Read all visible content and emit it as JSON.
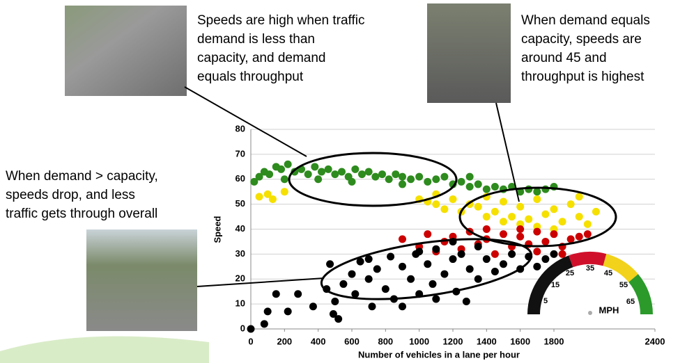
{
  "chart_data": {
    "type": "scatter",
    "xlabel": "Number of vehicles in a lane per hour",
    "ylabel": "Speed",
    "xlim": [
      0,
      2400
    ],
    "xticks": [
      0,
      200,
      400,
      600,
      800,
      1000,
      1200,
      1400,
      1600,
      1800,
      2400
    ],
    "ylim": [
      0,
      80
    ],
    "yticks": [
      0,
      10,
      20,
      30,
      40,
      50,
      60,
      70,
      80
    ],
    "grid": true,
    "series": [
      {
        "color": "#2e8b1e",
        "x": [
          20,
          50,
          80,
          110,
          150,
          180,
          220,
          260,
          300,
          340,
          380,
          420,
          460,
          500,
          540,
          580,
          620,
          660,
          700,
          740,
          780,
          820,
          860,
          900,
          950,
          1000,
          1050,
          1100,
          1150,
          1200,
          1250,
          1300,
          1350,
          1400,
          1450,
          1500,
          1550,
          1600,
          1650,
          1700,
          1750,
          1800,
          1300,
          900,
          600,
          400,
          200
        ],
        "values": [
          59,
          61,
          63,
          62,
          65,
          64,
          66,
          63,
          64,
          62,
          65,
          63,
          64,
          62,
          63,
          61,
          64,
          62,
          63,
          61,
          62,
          60,
          62,
          61,
          60,
          61,
          59,
          60,
          61,
          58,
          59,
          57,
          58,
          56,
          57,
          56,
          57,
          55,
          56,
          55,
          56,
          57,
          61,
          58,
          59,
          60,
          60
        ]
      },
      {
        "color": "#f5e000",
        "x": [
          50,
          100,
          130,
          200,
          1000,
          1050,
          1100,
          1150,
          1200,
          1250,
          1300,
          1350,
          1400,
          1450,
          1500,
          1550,
          1600,
          1650,
          1700,
          1750,
          1800,
          1850,
          1900,
          1950,
          2000,
          2050,
          1700,
          1800,
          1600,
          1500,
          1950,
          1400,
          1100
        ],
        "values": [
          53,
          54,
          52,
          55,
          52,
          51,
          50,
          48,
          52,
          47,
          50,
          49,
          53,
          47,
          51,
          45,
          49,
          44,
          52,
          46,
          48,
          43,
          50,
          45,
          42,
          47,
          41,
          40,
          42,
          43,
          53,
          45,
          54
        ]
      },
      {
        "color": "#cc0000",
        "x": [
          900,
          1000,
          1050,
          1100,
          1150,
          1200,
          1250,
          1300,
          1350,
          1400,
          1450,
          1500,
          1550,
          1600,
          1650,
          1700,
          1750,
          1800,
          1850,
          1900,
          1950,
          2000,
          1850,
          1700,
          1400,
          1600
        ],
        "values": [
          36,
          33,
          38,
          31,
          35,
          37,
          32,
          39,
          34,
          36,
          30,
          38,
          33,
          37,
          34,
          39,
          35,
          38,
          33,
          36,
          37,
          38,
          30,
          31,
          40,
          40
        ]
      },
      {
        "color": "#000000",
        "x": [
          0,
          80,
          100,
          150,
          220,
          280,
          370,
          450,
          470,
          490,
          500,
          520,
          550,
          600,
          620,
          650,
          700,
          720,
          750,
          800,
          830,
          850,
          900,
          950,
          980,
          1000,
          1050,
          1080,
          1100,
          1150,
          1200,
          1220,
          1250,
          1300,
          1350,
          1400,
          1450,
          1500,
          1550,
          1600,
          1650,
          1700,
          1750,
          1800,
          1200,
          1100,
          900,
          1000,
          700,
          1350,
          1280
        ],
        "values": [
          0,
          2,
          7,
          14,
          7,
          14,
          9,
          16,
          26,
          6,
          11,
          4,
          18,
          22,
          14,
          27,
          20,
          9,
          24,
          16,
          29,
          12,
          25,
          20,
          30,
          14,
          26,
          18,
          32,
          22,
          28,
          15,
          30,
          24,
          20,
          28,
          23,
          26,
          30,
          24,
          29,
          25,
          28,
          30,
          35,
          12,
          9,
          31,
          28,
          33,
          11
        ]
      }
    ]
  },
  "annotations": [
    {
      "lines": [
        "Speeds are high when traffic",
        "demand is less than",
        "capacity, and demand",
        "equals throughput"
      ]
    },
    {
      "lines": [
        "When demand equals",
        "capacity, speeds are",
        "around 45 and",
        "throughput is highest"
      ]
    },
    {
      "lines": [
        "When demand > capacity,",
        "speeds drop, and less",
        "traffic gets through overall"
      ]
    }
  ],
  "speedometer": {
    "labels": [
      "5",
      "15",
      "25",
      "35",
      "45",
      "55",
      "65"
    ],
    "unit": "MPH"
  }
}
